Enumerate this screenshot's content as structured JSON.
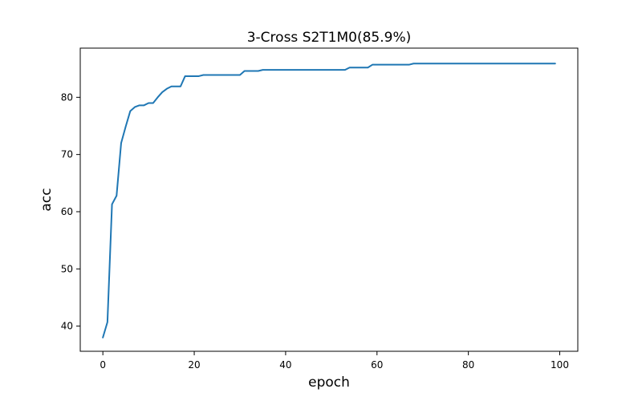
{
  "chart_data": {
    "type": "line",
    "title": "3-Cross S2T1M0(85.9%)",
    "xlabel": "epoch",
    "ylabel": "acc",
    "xlim": [
      -4.95,
      103.95
    ],
    "ylim": [
      35.6,
      88.6
    ],
    "xticks": [
      0,
      20,
      40,
      60,
      80,
      100
    ],
    "yticks": [
      40,
      50,
      60,
      70,
      80
    ],
    "grid": false,
    "legend": "none",
    "series": [
      {
        "color": "#1f77b4",
        "x": [
          0,
          1,
          2,
          3,
          4,
          5,
          6,
          7,
          8,
          9,
          10,
          11,
          12,
          13,
          14,
          15,
          16,
          17,
          18,
          19,
          20,
          21,
          22,
          23,
          24,
          25,
          26,
          27,
          28,
          29,
          30,
          31,
          32,
          33,
          34,
          35,
          36,
          37,
          38,
          39,
          40,
          41,
          42,
          43,
          44,
          45,
          46,
          47,
          48,
          49,
          50,
          51,
          52,
          53,
          54,
          55,
          56,
          57,
          58,
          59,
          60,
          61,
          62,
          63,
          64,
          65,
          66,
          67,
          68,
          69,
          70,
          71,
          72,
          73,
          74,
          75,
          76,
          77,
          78,
          79,
          80,
          81,
          82,
          83,
          84,
          85,
          86,
          87,
          88,
          89,
          90,
          91,
          92,
          93,
          94,
          95,
          96,
          97,
          98,
          99
        ],
        "values": [
          38.0,
          40.7,
          61.3,
          62.8,
          72.0,
          74.9,
          77.6,
          78.3,
          78.6,
          78.6,
          79.0,
          79.0,
          80.0,
          80.9,
          81.5,
          81.9,
          81.9,
          81.9,
          83.7,
          83.7,
          83.7,
          83.7,
          83.9,
          83.9,
          83.9,
          83.9,
          83.9,
          83.9,
          83.9,
          83.9,
          83.9,
          84.6,
          84.6,
          84.6,
          84.6,
          84.8,
          84.8,
          84.8,
          84.8,
          84.8,
          84.8,
          84.8,
          84.8,
          84.8,
          84.8,
          84.8,
          84.8,
          84.8,
          84.8,
          84.8,
          84.8,
          84.8,
          84.8,
          84.8,
          85.2,
          85.2,
          85.2,
          85.2,
          85.2,
          85.7,
          85.7,
          85.7,
          85.7,
          85.7,
          85.7,
          85.7,
          85.7,
          85.7,
          85.9,
          85.9,
          85.9,
          85.9,
          85.9,
          85.9,
          85.9,
          85.9,
          85.9,
          85.9,
          85.9,
          85.9,
          85.9,
          85.9,
          85.9,
          85.9,
          85.9,
          85.9,
          85.9,
          85.9,
          85.9,
          85.9,
          85.9,
          85.9,
          85.9,
          85.9,
          85.9,
          85.9,
          85.9,
          85.9,
          85.9,
          85.9
        ]
      }
    ]
  }
}
